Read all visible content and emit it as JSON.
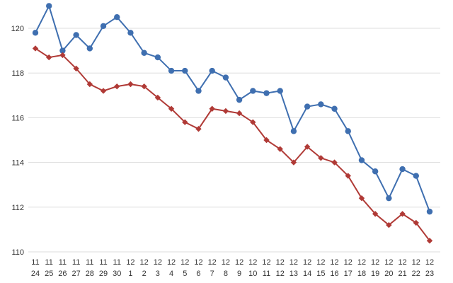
{
  "chart_data": {
    "type": "line",
    "title": "",
    "xlabel": "",
    "ylabel": "",
    "ylim": [
      110,
      121
    ],
    "yticks": [
      110,
      112,
      114,
      116,
      118,
      120
    ],
    "grid": true,
    "categories": [
      {
        "month": "11",
        "day": "24"
      },
      {
        "month": "11",
        "day": "25"
      },
      {
        "month": "11",
        "day": "26"
      },
      {
        "month": "11",
        "day": "27"
      },
      {
        "month": "11",
        "day": "28"
      },
      {
        "month": "11",
        "day": "29"
      },
      {
        "month": "11",
        "day": "30"
      },
      {
        "month": "12",
        "day": "1"
      },
      {
        "month": "12",
        "day": "2"
      },
      {
        "month": "12",
        "day": "3"
      },
      {
        "month": "12",
        "day": "4"
      },
      {
        "month": "12",
        "day": "5"
      },
      {
        "month": "12",
        "day": "6"
      },
      {
        "month": "12",
        "day": "7"
      },
      {
        "month": "12",
        "day": "8"
      },
      {
        "month": "12",
        "day": "9"
      },
      {
        "month": "12",
        "day": "10"
      },
      {
        "month": "12",
        "day": "11"
      },
      {
        "month": "12",
        "day": "12"
      },
      {
        "month": "12",
        "day": "13"
      },
      {
        "month": "12",
        "day": "14"
      },
      {
        "month": "12",
        "day": "15"
      },
      {
        "month": "12",
        "day": "16"
      },
      {
        "month": "12",
        "day": "17"
      },
      {
        "month": "12",
        "day": "18"
      },
      {
        "month": "12",
        "day": "19"
      },
      {
        "month": "12",
        "day": "20"
      },
      {
        "month": "12",
        "day": "21"
      },
      {
        "month": "12",
        "day": "22"
      },
      {
        "month": "12",
        "day": "23"
      }
    ],
    "series": [
      {
        "color": "#3f6fb0",
        "marker": "circle",
        "values": [
          119.8,
          121.0,
          119.0,
          119.7,
          119.1,
          120.1,
          120.5,
          119.8,
          118.9,
          118.7,
          118.1,
          118.1,
          117.2,
          118.1,
          117.8,
          116.8,
          117.2,
          117.1,
          117.2,
          115.4,
          116.5,
          116.6,
          116.4,
          115.4,
          114.1,
          113.6,
          112.4,
          113.7,
          113.4,
          111.8
        ]
      },
      {
        "color": "#b03a36",
        "marker": "diamond",
        "values": [
          119.1,
          118.7,
          118.8,
          118.2,
          117.5,
          117.2,
          117.4,
          117.5,
          117.4,
          116.9,
          116.4,
          115.8,
          115.5,
          116.4,
          116.3,
          116.2,
          115.8,
          115.0,
          114.6,
          114.0,
          114.7,
          114.2,
          114.0,
          113.4,
          112.4,
          111.7,
          111.2,
          111.7,
          111.3,
          110.5
        ]
      }
    ]
  }
}
